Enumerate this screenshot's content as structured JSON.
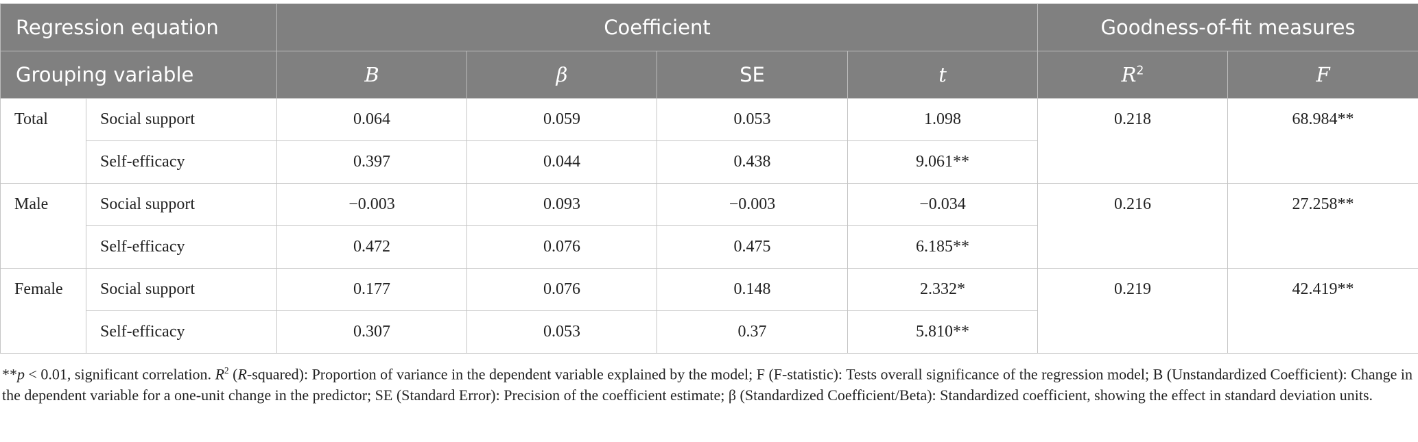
{
  "table": {
    "header_top": [
      "Regression equation",
      "Coefficient",
      "Goodness-of-fit measures"
    ],
    "header_sub": {
      "grouping": "Grouping variable",
      "b": "B",
      "beta": "β",
      "se": "SE",
      "t": "t",
      "r2": {
        "text": "R",
        "sup": "2"
      },
      "f": "F"
    },
    "groups": [
      {
        "name": "Total",
        "r2": "0.218",
        "f": "68.984**",
        "rows": [
          {
            "predictor": "Social support",
            "b": "0.064",
            "beta": "0.059",
            "se": "0.053",
            "t": "1.098"
          },
          {
            "predictor": "Self-efficacy",
            "b": "0.397",
            "beta": "0.044",
            "se": "0.438",
            "t": "9.061**"
          }
        ]
      },
      {
        "name": "Male",
        "r2": "0.216",
        "f": "27.258**",
        "rows": [
          {
            "predictor": "Social support",
            "b": "−0.003",
            "beta": "0.093",
            "se": "−0.003",
            "t": "−0.034"
          },
          {
            "predictor": "Self-efficacy",
            "b": "0.472",
            "beta": "0.076",
            "se": "0.475",
            "t": "6.185**"
          }
        ]
      },
      {
        "name": "Female",
        "r2": "0.219",
        "f": "42.419**",
        "rows": [
          {
            "predictor": "Social support",
            "b": "0.177",
            "beta": "0.076",
            "se": "0.148",
            "t": "2.332*"
          },
          {
            "predictor": "Self-efficacy",
            "b": "0.307",
            "beta": "0.053",
            "se": "0.37",
            "t": "5.810**"
          }
        ]
      }
    ]
  },
  "footnote": [
    "**",
    "p",
    " < 0.01, significant correlation. ",
    "R",
    "2",
    " (",
    "R",
    "-squared): Proportion of variance in the dependent variable explained by the model; F (F-statistic): Tests overall significance of the regression model; B (Unstandardized Coefficient): Change in the dependent variable for a one-unit change in the predictor; SE (Standard Error): Precision of the coefficient estimate; β (Standardized Coefficient/Beta): Standardized coefficient, showing the effect in standard deviation units."
  ]
}
